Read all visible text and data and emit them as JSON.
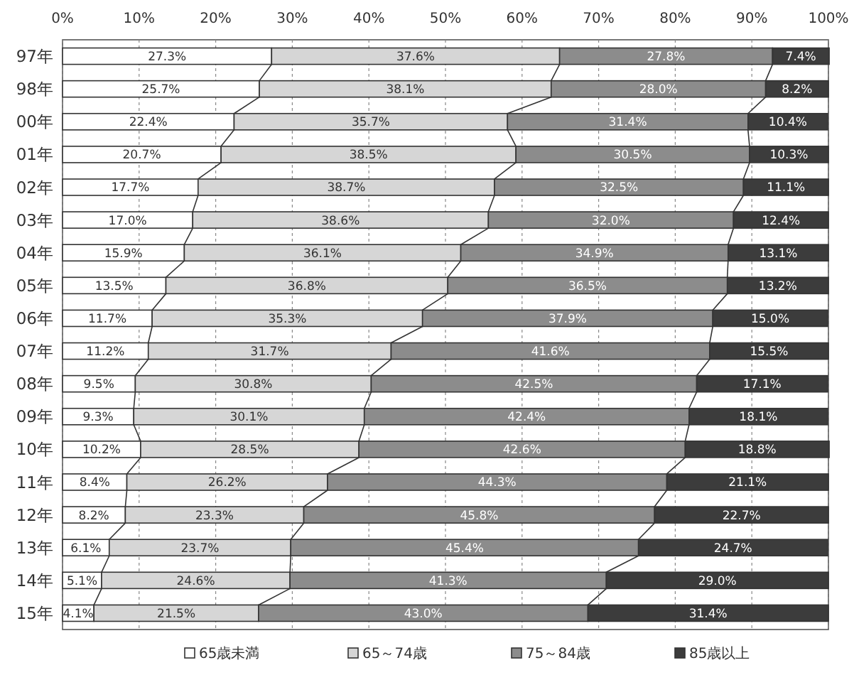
{
  "chart_data": {
    "type": "bar",
    "orientation": "horizontal",
    "stacked": true,
    "grid": "x",
    "legend": "bottom",
    "categories": [
      "97年",
      "98年",
      "00年",
      "01年",
      "02年",
      "03年",
      "04年",
      "05年",
      "06年",
      "07年",
      "08年",
      "09年",
      "10年",
      "11年",
      "12年",
      "13年",
      "14年",
      "15年"
    ],
    "series": [
      {
        "name": "65歳未満",
        "color": "#ffffff",
        "values": [
          27.3,
          25.7,
          22.4,
          20.7,
          17.7,
          17.0,
          15.9,
          13.5,
          11.7,
          11.2,
          9.5,
          9.3,
          10.2,
          8.4,
          8.2,
          6.1,
          5.1,
          4.1
        ],
        "value_labels": [
          "27.3%",
          "25.7%",
          "22.4%",
          "20.7%",
          "17.7%",
          "17.0%",
          "15.9%",
          "13.5%",
          "11.7%",
          "11.2%",
          "9.5%",
          "9.3%",
          "10.2%",
          "8.4%",
          "8.2%",
          "6.1%",
          "5.1%",
          "4.1%"
        ]
      },
      {
        "name": "65～74歳",
        "color": "#d6d6d6",
        "values": [
          37.6,
          38.1,
          35.7,
          38.5,
          38.7,
          38.6,
          36.1,
          36.8,
          35.3,
          31.7,
          30.8,
          30.1,
          28.5,
          26.2,
          23.3,
          23.7,
          24.6,
          21.5
        ],
        "value_labels": [
          "37.6%",
          "38.1%",
          "35.7%",
          "38.5%",
          "38.7%",
          "38.6%",
          "36.1%",
          "36.8%",
          "35.3%",
          "31.7%",
          "30.8%",
          "30.1%",
          "28.5%",
          "26.2%",
          "23.3%",
          "23.7%",
          "24.6%",
          "21.5%"
        ]
      },
      {
        "name": "75～84歳",
        "color": "#8c8c8c",
        "values": [
          27.8,
          28.0,
          31.4,
          30.5,
          32.5,
          32.0,
          34.9,
          36.5,
          37.9,
          41.6,
          42.5,
          42.4,
          42.6,
          44.3,
          45.8,
          45.4,
          41.3,
          43.0
        ],
        "value_labels": [
          "27.8%",
          "28.0%",
          "31.4%",
          "30.5%",
          "32.5%",
          "32.0%",
          "34.9%",
          "36.5%",
          "37.9%",
          "41.6%",
          "42.5%",
          "42.4%",
          "42.6%",
          "44.3%",
          "45.8%",
          "45.4%",
          "41.3%",
          "43.0%"
        ]
      },
      {
        "name": "85歳以上",
        "color": "#3c3c3c",
        "values": [
          7.4,
          8.2,
          10.4,
          10.3,
          11.1,
          12.4,
          13.1,
          13.2,
          15.0,
          15.5,
          17.1,
          18.1,
          18.8,
          21.1,
          22.7,
          24.7,
          29.0,
          31.4
        ],
        "value_labels": [
          "7.4%",
          "8.2%",
          "10.4%",
          "10.3%",
          "11.1%",
          "12.4%",
          "13.1%",
          "13.2%",
          "15.0%",
          "15.5%",
          "17.1%",
          "18.1%",
          "18.8%",
          "21.1%",
          "22.7%",
          "24.7%",
          "29.0%",
          "31.4%"
        ]
      }
    ],
    "xlim": [
      0,
      100
    ],
    "xticks": [
      {
        "value": 0,
        "label": "0%"
      },
      {
        "value": 10,
        "label": "10%"
      },
      {
        "value": 20,
        "label": "20%"
      },
      {
        "value": 30,
        "label": "30%"
      },
      {
        "value": 40,
        "label": "40%"
      },
      {
        "value": 50,
        "label": "50%"
      },
      {
        "value": 60,
        "label": "60%"
      },
      {
        "value": 70,
        "label": "70%"
      },
      {
        "value": 80,
        "label": "80%"
      },
      {
        "value": 90,
        "label": "90%"
      },
      {
        "value": 100,
        "label": "100%"
      }
    ]
  }
}
